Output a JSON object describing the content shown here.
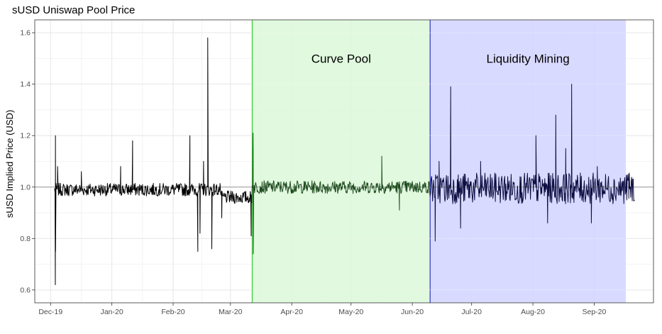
{
  "chart_data": {
    "type": "line",
    "title": "sUSD Uniswap Pool Price",
    "xlabel": "",
    "ylabel": "sUSD Implied Price (USD)",
    "x_range": [
      "2019-11-23",
      "2020-10-01"
    ],
    "ylim": [
      0.55,
      1.65
    ],
    "x_ticks": [
      {
        "date": "2019-12-01",
        "label": "Dec-19"
      },
      {
        "date": "2020-01-01",
        "label": "Jan-20"
      },
      {
        "date": "2020-02-01",
        "label": "Feb-20"
      },
      {
        "date": "2020-03-01",
        "label": "Mar-20"
      },
      {
        "date": "2020-04-01",
        "label": "Apr-20"
      },
      {
        "date": "2020-05-01",
        "label": "May-20"
      },
      {
        "date": "2020-06-01",
        "label": "Jun-20"
      },
      {
        "date": "2020-07-01",
        "label": "Jul-20"
      },
      {
        "date": "2020-08-01",
        "label": "Aug-20"
      },
      {
        "date": "2020-09-01",
        "label": "Sep-20"
      }
    ],
    "y_ticks": [
      {
        "value": 0.6,
        "label": "0.6"
      },
      {
        "value": 0.8,
        "label": "0.8"
      },
      {
        "value": 1.0,
        "label": "1.0"
      },
      {
        "value": 1.2,
        "label": "1.2"
      },
      {
        "value": 1.4,
        "label": "1.4"
      },
      {
        "value": 1.6,
        "label": "1.6"
      }
    ],
    "grid": true,
    "reference_line": {
      "y": 1.0,
      "color": "#aaaaaa"
    },
    "regions": [
      {
        "label": "Curve Pool",
        "start": "2020-03-12",
        "end": "2020-06-10",
        "fill": "#dcf8d8",
        "edge": "#33cc33"
      },
      {
        "label": "Liquidity Mining",
        "start": "2020-06-10",
        "end": "2020-09-17",
        "fill": "#d2d4ff",
        "edge": "#3333cc"
      }
    ],
    "series": [
      {
        "color_by_period": [
          "#000000",
          "#1e4b1e",
          "#0d0d40"
        ],
        "start": "2019-12-03",
        "end": "2020-09-21",
        "baseline": 1.0,
        "spikes": [
          {
            "date": "2019-12-03",
            "value": 1.2
          },
          {
            "date": "2019-12-03",
            "value": 0.62
          },
          {
            "date": "2019-12-03",
            "value": 0.75
          },
          {
            "date": "2019-12-04",
            "value": 1.08
          },
          {
            "date": "2019-12-16",
            "value": 1.06
          },
          {
            "date": "2020-01-05",
            "value": 1.08
          },
          {
            "date": "2020-01-11",
            "value": 1.18
          },
          {
            "date": "2020-02-09",
            "value": 1.2
          },
          {
            "date": "2020-02-13",
            "value": 0.75
          },
          {
            "date": "2020-02-14",
            "value": 0.82
          },
          {
            "date": "2020-02-16",
            "value": 1.1
          },
          {
            "date": "2020-02-18",
            "value": 1.58
          },
          {
            "date": "2020-02-20",
            "value": 0.76
          },
          {
            "date": "2020-02-25",
            "value": 0.88
          },
          {
            "date": "2020-03-12",
            "value": 1.21
          },
          {
            "date": "2020-03-12",
            "value": 0.74
          },
          {
            "date": "2020-03-11",
            "value": 0.81
          },
          {
            "date": "2020-05-16",
            "value": 1.12
          },
          {
            "date": "2020-05-25",
            "value": 0.91
          },
          {
            "date": "2020-06-12",
            "value": 0.79
          },
          {
            "date": "2020-06-20",
            "value": 1.39
          },
          {
            "date": "2020-06-14",
            "value": 1.1
          },
          {
            "date": "2020-06-25",
            "value": 0.84
          },
          {
            "date": "2020-07-05",
            "value": 1.1
          },
          {
            "date": "2020-08-02",
            "value": 1.2
          },
          {
            "date": "2020-08-08",
            "value": 0.86
          },
          {
            "date": "2020-08-12",
            "value": 1.28
          },
          {
            "date": "2020-08-17",
            "value": 1.15
          },
          {
            "date": "2020-08-20",
            "value": 1.4
          },
          {
            "date": "2020-08-30",
            "value": 0.86
          },
          {
            "date": "2020-09-02",
            "value": 1.08
          },
          {
            "date": "2020-09-18",
            "value": 1.05
          },
          {
            "date": "2020-09-21",
            "value": 0.95
          }
        ]
      }
    ]
  }
}
